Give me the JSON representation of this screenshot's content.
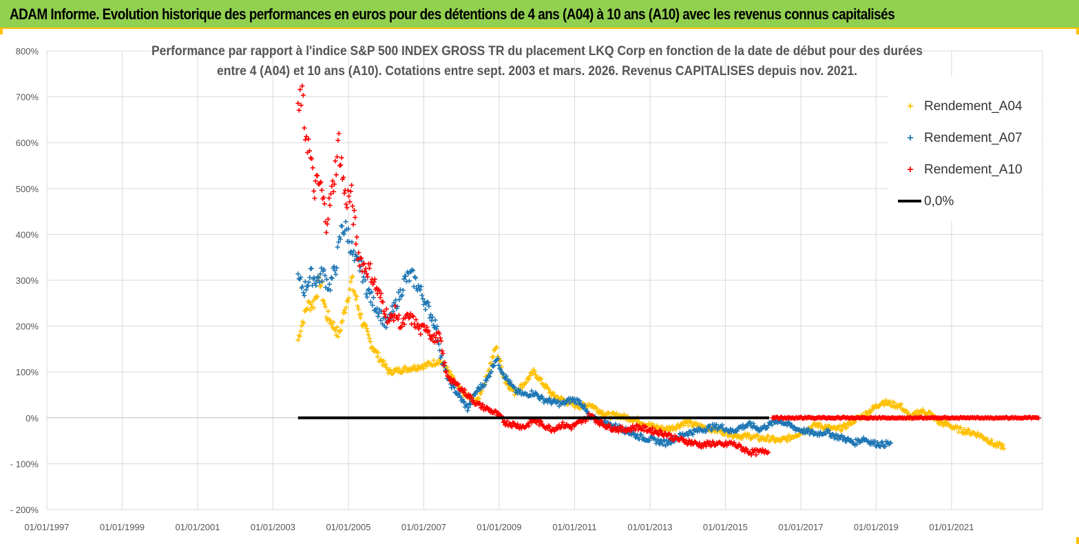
{
  "header": {
    "title": "ADAM Informe. Evolution historique des performances en euros pour des détentions de 4 ans (A04) à 10 ans (A10) avec les revenus connus capitalisés"
  },
  "colors": {
    "banner": "#92d050",
    "accent": "#ffc000",
    "A04": "#ffc000",
    "A07": "#1f77b4",
    "A10": "#ff0000",
    "zero": "#000000"
  },
  "chart_data": {
    "type": "scatter",
    "title_lines": [
      "Performance par rapport à l'indice S&P 500 INDEX GROSS TR  du placement LKQ Corp en fonction de la date de début pour des durées",
      "entre 4 (A04) et 10 ans (A10). Cotations entre sept. 2003 et mars. 2026. Revenus CAPITALISES depuis nov. 2021."
    ],
    "x_range": [
      "1997-01-01",
      "2023-06-01"
    ],
    "y_range": [
      -200,
      800
    ],
    "y_ticks": [
      800,
      700,
      600,
      500,
      400,
      300,
      200,
      100,
      0,
      -100,
      -200
    ],
    "y_tick_labels": [
      "800%",
      "700%",
      "600%",
      "500%",
      "400%",
      "300%",
      "200%",
      "100%",
      "0%",
      "- 100%",
      "- 200%"
    ],
    "x_ticks": [
      "1997-01-01",
      "1999-01-01",
      "2001-01-01",
      "2003-01-01",
      "2005-01-01",
      "2007-01-01",
      "2009-01-01",
      "2011-01-01",
      "2013-01-01",
      "2015-01-01",
      "2017-01-01",
      "2019-01-01",
      "2021-01-01"
    ],
    "x_tick_labels": [
      "01/01/1997",
      "01/01/1999",
      "01/01/2001",
      "01/01/2003",
      "01/01/2005",
      "01/01/2007",
      "01/01/2009",
      "01/01/2011",
      "01/01/2013",
      "01/01/2015",
      "01/01/2017",
      "01/01/2019",
      "01/01/2021"
    ],
    "grid": true,
    "legend_position": "top-right",
    "series": [
      {
        "name": "Rendement_A04",
        "color": "#ffc000",
        "marker": "+",
        "points": [
          [
            "2003-09-01",
            170
          ],
          [
            "2003-10-15",
            210
          ],
          [
            "2003-12-01",
            245
          ],
          [
            "2004-02-01",
            250
          ],
          [
            "2004-04-01",
            300
          ],
          [
            "2004-06-01",
            225
          ],
          [
            "2004-08-01",
            205
          ],
          [
            "2004-10-01",
            180
          ],
          [
            "2004-12-01",
            240
          ],
          [
            "2005-02-01",
            300
          ],
          [
            "2005-04-01",
            245
          ],
          [
            "2005-06-01",
            200
          ],
          [
            "2005-08-01",
            165
          ],
          [
            "2005-10-01",
            140
          ],
          [
            "2005-12-01",
            120
          ],
          [
            "2006-02-01",
            100
          ],
          [
            "2006-06-01",
            105
          ],
          [
            "2006-10-01",
            110
          ],
          [
            "2007-02-01",
            115
          ],
          [
            "2007-06-01",
            125
          ],
          [
            "2007-09-01",
            100
          ],
          [
            "2007-12-01",
            65
          ],
          [
            "2008-03-01",
            45
          ],
          [
            "2008-06-01",
            35
          ],
          [
            "2008-09-01",
            90
          ],
          [
            "2008-12-01",
            155
          ],
          [
            "2009-03-01",
            80
          ],
          [
            "2009-06-01",
            55
          ],
          [
            "2009-09-01",
            75
          ],
          [
            "2009-12-01",
            100
          ],
          [
            "2010-03-01",
            75
          ],
          [
            "2010-06-01",
            50
          ],
          [
            "2010-09-01",
            40
          ],
          [
            "2010-12-01",
            30
          ],
          [
            "2011-03-01",
            25
          ],
          [
            "2011-06-01",
            30
          ],
          [
            "2011-09-01",
            15
          ],
          [
            "2011-12-01",
            5
          ],
          [
            "2012-03-01",
            5
          ],
          [
            "2012-06-01",
            0
          ],
          [
            "2012-09-01",
            -5
          ],
          [
            "2012-12-01",
            -15
          ],
          [
            "2013-03-01",
            -20
          ],
          [
            "2013-06-01",
            -25
          ],
          [
            "2013-09-01",
            -20
          ],
          [
            "2013-12-01",
            -10
          ],
          [
            "2014-03-01",
            -15
          ],
          [
            "2014-06-01",
            -20
          ],
          [
            "2014-09-01",
            -25
          ],
          [
            "2014-12-01",
            -30
          ],
          [
            "2015-03-01",
            -35
          ],
          [
            "2015-06-01",
            -40
          ],
          [
            "2015-09-01",
            -40
          ],
          [
            "2015-12-01",
            -45
          ],
          [
            "2016-03-01",
            -45
          ],
          [
            "2016-06-01",
            -50
          ],
          [
            "2016-09-01",
            -45
          ],
          [
            "2016-12-01",
            -35
          ],
          [
            "2017-03-01",
            -25
          ],
          [
            "2017-06-01",
            -15
          ],
          [
            "2017-09-01",
            -20
          ],
          [
            "2017-12-01",
            -25
          ],
          [
            "2018-03-01",
            -20
          ],
          [
            "2018-06-01",
            -5
          ],
          [
            "2018-09-01",
            5
          ],
          [
            "2018-12-01",
            20
          ],
          [
            "2019-03-01",
            35
          ],
          [
            "2019-06-01",
            30
          ],
          [
            "2019-09-01",
            25
          ],
          [
            "2019-12-01",
            0
          ],
          [
            "2020-03-01",
            15
          ],
          [
            "2020-06-01",
            10
          ],
          [
            "2020-09-01",
            -10
          ],
          [
            "2020-12-01",
            -15
          ],
          [
            "2021-03-01",
            -25
          ],
          [
            "2021-06-01",
            -30
          ],
          [
            "2021-09-01",
            -35
          ],
          [
            "2021-12-01",
            -45
          ],
          [
            "2022-03-01",
            -60
          ],
          [
            "2022-06-01",
            -62
          ]
        ]
      },
      {
        "name": "Rendement_A07",
        "color": "#1f77b4",
        "marker": "+",
        "points": [
          [
            "2003-09-01",
            300
          ],
          [
            "2003-11-01",
            280
          ],
          [
            "2004-01-01",
            310
          ],
          [
            "2004-03-01",
            300
          ],
          [
            "2004-05-01",
            315
          ],
          [
            "2004-07-01",
            285
          ],
          [
            "2004-09-01",
            330
          ],
          [
            "2004-11-01",
            420
          ],
          [
            "2005-01-01",
            400
          ],
          [
            "2005-03-01",
            340
          ],
          [
            "2005-05-01",
            330
          ],
          [
            "2005-07-01",
            280
          ],
          [
            "2005-09-01",
            250
          ],
          [
            "2005-11-01",
            230
          ],
          [
            "2006-01-01",
            200
          ],
          [
            "2006-03-01",
            230
          ],
          [
            "2006-05-01",
            260
          ],
          [
            "2006-07-01",
            300
          ],
          [
            "2006-09-01",
            310
          ],
          [
            "2006-11-01",
            290
          ],
          [
            "2007-01-01",
            260
          ],
          [
            "2007-03-01",
            230
          ],
          [
            "2007-05-01",
            200
          ],
          [
            "2007-07-01",
            120
          ],
          [
            "2007-09-01",
            80
          ],
          [
            "2007-11-01",
            60
          ],
          [
            "2008-01-01",
            40
          ],
          [
            "2008-03-01",
            20
          ],
          [
            "2008-06-01",
            60
          ],
          [
            "2008-09-01",
            80
          ],
          [
            "2008-12-01",
            130
          ],
          [
            "2009-03-01",
            90
          ],
          [
            "2009-06-01",
            60
          ],
          [
            "2009-09-01",
            50
          ],
          [
            "2009-12-01",
            55
          ],
          [
            "2010-03-01",
            40
          ],
          [
            "2010-06-01",
            35
          ],
          [
            "2010-09-01",
            30
          ],
          [
            "2010-12-01",
            40
          ],
          [
            "2011-03-01",
            35
          ],
          [
            "2011-06-01",
            0
          ],
          [
            "2011-09-01",
            -5
          ],
          [
            "2011-12-01",
            -15
          ],
          [
            "2012-03-01",
            -20
          ],
          [
            "2012-06-01",
            -30
          ],
          [
            "2012-09-01",
            -40
          ],
          [
            "2012-12-01",
            -45
          ],
          [
            "2013-03-01",
            -50
          ],
          [
            "2013-06-01",
            -55
          ],
          [
            "2013-09-01",
            -45
          ],
          [
            "2013-12-01",
            -35
          ],
          [
            "2014-03-01",
            -30
          ],
          [
            "2014-06-01",
            -25
          ],
          [
            "2014-09-01",
            -20
          ],
          [
            "2014-12-01",
            -20
          ],
          [
            "2015-03-01",
            -30
          ],
          [
            "2015-06-01",
            -20
          ],
          [
            "2015-09-01",
            -15
          ],
          [
            "2015-12-01",
            -25
          ],
          [
            "2016-03-01",
            -15
          ],
          [
            "2016-06-01",
            -5
          ],
          [
            "2016-09-01",
            -15
          ],
          [
            "2016-12-01",
            -25
          ],
          [
            "2017-03-01",
            -30
          ],
          [
            "2017-06-01",
            -35
          ],
          [
            "2017-09-01",
            -30
          ],
          [
            "2017-12-01",
            -40
          ],
          [
            "2018-03-01",
            -45
          ],
          [
            "2018-06-01",
            -55
          ],
          [
            "2018-09-01",
            -45
          ],
          [
            "2018-12-01",
            -55
          ],
          [
            "2019-03-01",
            -58
          ],
          [
            "2019-06-01",
            -55
          ]
        ]
      },
      {
        "name": "Rendement_A10",
        "color": "#ff0000",
        "marker": "+",
        "points": [
          [
            "2003-09-01",
            650
          ],
          [
            "2003-10-01",
            710
          ],
          [
            "2003-11-01",
            640
          ],
          [
            "2003-12-01",
            610
          ],
          [
            "2004-01-01",
            560
          ],
          [
            "2004-02-01",
            500
          ],
          [
            "2004-04-01",
            510
          ],
          [
            "2004-06-01",
            430
          ],
          [
            "2004-08-01",
            500
          ],
          [
            "2004-10-01",
            600
          ],
          [
            "2004-12-01",
            480
          ],
          [
            "2005-02-01",
            480
          ],
          [
            "2005-04-01",
            360
          ],
          [
            "2005-06-01",
            330
          ],
          [
            "2005-08-01",
            320
          ],
          [
            "2005-10-01",
            280
          ],
          [
            "2005-12-01",
            250
          ],
          [
            "2006-02-01",
            210
          ],
          [
            "2006-04-01",
            230
          ],
          [
            "2006-06-01",
            200
          ],
          [
            "2006-08-01",
            220
          ],
          [
            "2006-10-01",
            210
          ],
          [
            "2006-12-01",
            190
          ],
          [
            "2007-02-01",
            200
          ],
          [
            "2007-04-01",
            170
          ],
          [
            "2007-06-01",
            180
          ],
          [
            "2007-08-01",
            100
          ],
          [
            "2007-10-01",
            80
          ],
          [
            "2007-12-01",
            70
          ],
          [
            "2008-03-01",
            50
          ],
          [
            "2008-06-01",
            30
          ],
          [
            "2008-09-01",
            20
          ],
          [
            "2008-12-01",
            10
          ],
          [
            "2009-03-01",
            -10
          ],
          [
            "2009-06-01",
            -15
          ],
          [
            "2009-09-01",
            -20
          ],
          [
            "2009-12-01",
            -5
          ],
          [
            "2010-03-01",
            -15
          ],
          [
            "2010-06-01",
            -25
          ],
          [
            "2010-09-01",
            -15
          ],
          [
            "2010-12-01",
            -20
          ],
          [
            "2011-03-01",
            -10
          ],
          [
            "2011-06-01",
            5
          ],
          [
            "2011-09-01",
            -10
          ],
          [
            "2011-12-01",
            -20
          ],
          [
            "2012-03-01",
            -25
          ],
          [
            "2012-06-01",
            -25
          ],
          [
            "2012-09-01",
            -20
          ],
          [
            "2012-12-01",
            -25
          ],
          [
            "2013-03-01",
            -30
          ],
          [
            "2013-06-01",
            -35
          ],
          [
            "2013-09-01",
            -45
          ],
          [
            "2013-12-01",
            -50
          ],
          [
            "2014-03-01",
            -55
          ],
          [
            "2014-06-01",
            -60
          ],
          [
            "2014-09-01",
            -55
          ],
          [
            "2014-12-01",
            -60
          ],
          [
            "2015-03-01",
            -55
          ],
          [
            "2015-06-01",
            -65
          ],
          [
            "2015-09-01",
            -75
          ],
          [
            "2015-12-01",
            -75
          ],
          [
            "2016-03-01",
            -70
          ]
        ],
        "flat_zero_range": [
          "2016-04-01",
          "2023-05-01"
        ]
      },
      {
        "name": "0,0%",
        "color": "#000000",
        "type": "line",
        "points": [
          [
            "2003-09-01",
            0
          ],
          [
            "2016-03-01",
            0
          ]
        ]
      }
    ]
  }
}
